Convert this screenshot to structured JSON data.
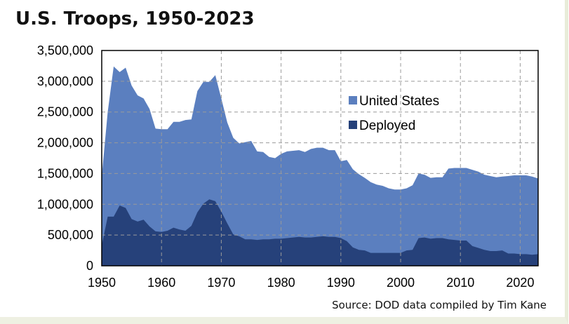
{
  "chart_data": {
    "type": "area",
    "title": "U.S. Troops, 1950-2023",
    "source": "Source: DOD data compiled by Tim Kane",
    "xlabel": "",
    "ylabel": "",
    "xlim": [
      1950,
      2023
    ],
    "ylim": [
      0,
      3500000
    ],
    "x_ticks": [
      1950,
      1960,
      1970,
      1980,
      1990,
      2000,
      2010,
      2020
    ],
    "y_ticks": [
      0,
      500000,
      1000000,
      1500000,
      2000000,
      2500000,
      3000000,
      3500000
    ],
    "y_tick_labels": [
      "0",
      "500,000",
      "1,000,000",
      "1,500,000",
      "2,000,000",
      "2,500,000",
      "3,000,000",
      "3,500,000"
    ],
    "grid": true,
    "legend_position": "right-middle",
    "x": [
      1950,
      1951,
      1952,
      1953,
      1954,
      1955,
      1956,
      1957,
      1958,
      1959,
      1960,
      1961,
      1962,
      1963,
      1964,
      1965,
      1966,
      1967,
      1968,
      1969,
      1970,
      1971,
      1972,
      1973,
      1974,
      1975,
      1976,
      1977,
      1978,
      1979,
      1980,
      1981,
      1982,
      1983,
      1984,
      1985,
      1986,
      1987,
      1988,
      1989,
      1990,
      1991,
      1992,
      1993,
      1994,
      1995,
      1996,
      1997,
      1998,
      1999,
      2000,
      2001,
      2002,
      2003,
      2004,
      2005,
      2006,
      2007,
      2008,
      2009,
      2010,
      2011,
      2012,
      2013,
      2014,
      2015,
      2016,
      2017,
      2018,
      2019,
      2020,
      2021,
      2022,
      2023
    ],
    "series": [
      {
        "name": "United States",
        "color": "#5b7fbf",
        "values": [
          1450000,
          2500000,
          3240000,
          3150000,
          3220000,
          2930000,
          2770000,
          2720000,
          2550000,
          2230000,
          2220000,
          2220000,
          2340000,
          2340000,
          2370000,
          2380000,
          2840000,
          2990000,
          2990000,
          3100000,
          2720000,
          2330000,
          2080000,
          1990000,
          2010000,
          2030000,
          1860000,
          1850000,
          1770000,
          1750000,
          1820000,
          1860000,
          1870000,
          1880000,
          1850000,
          1900000,
          1920000,
          1920000,
          1880000,
          1880000,
          1700000,
          1720000,
          1570000,
          1490000,
          1430000,
          1360000,
          1320000,
          1300000,
          1260000,
          1240000,
          1240000,
          1260000,
          1310000,
          1500000,
          1480000,
          1430000,
          1440000,
          1440000,
          1580000,
          1590000,
          1590000,
          1590000,
          1560000,
          1530000,
          1480000,
          1460000,
          1440000,
          1450000,
          1460000,
          1470000,
          1470000,
          1470000,
          1450000,
          1420000
        ]
      },
      {
        "name": "Deployed",
        "color": "#26417a",
        "values": [
          330000,
          800000,
          800000,
          980000,
          940000,
          760000,
          720000,
          750000,
          640000,
          560000,
          550000,
          570000,
          620000,
          590000,
          570000,
          650000,
          870000,
          1010000,
          1080000,
          1050000,
          880000,
          690000,
          510000,
          480000,
          430000,
          430000,
          420000,
          430000,
          430000,
          440000,
          440000,
          450000,
          460000,
          470000,
          460000,
          460000,
          470000,
          480000,
          470000,
          470000,
          450000,
          400000,
          300000,
          260000,
          250000,
          210000,
          210000,
          210000,
          210000,
          210000,
          210000,
          250000,
          260000,
          450000,
          460000,
          440000,
          450000,
          450000,
          430000,
          420000,
          410000,
          410000,
          320000,
          290000,
          260000,
          240000,
          240000,
          250000,
          200000,
          200000,
          190000,
          190000,
          180000,
          190000
        ]
      }
    ]
  }
}
